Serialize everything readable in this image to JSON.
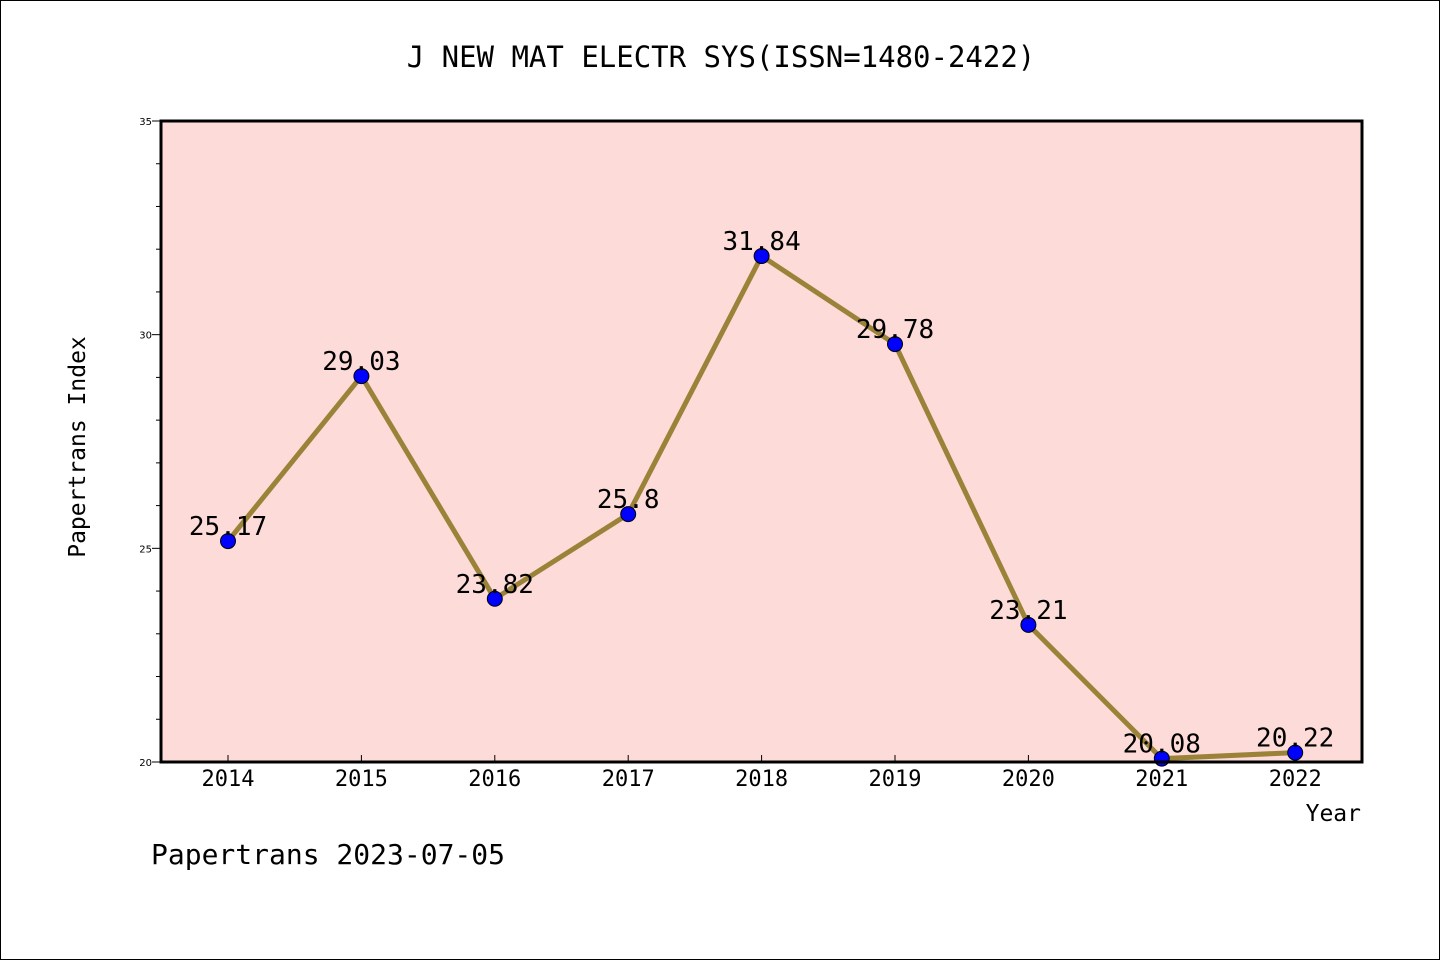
{
  "chart_data": {
    "type": "line",
    "title": "J NEW MAT ELECTR SYS(ISSN=1480-2422)",
    "xlabel": "Year",
    "ylabel": "Papertrans Index",
    "categories": [
      "2014",
      "2015",
      "2016",
      "2017",
      "2018",
      "2019",
      "2020",
      "2021",
      "2022"
    ],
    "series": [
      {
        "values": [
          25.17,
          29.03,
          23.82,
          25.8,
          31.84,
          29.78,
          23.21,
          20.08,
          20.22
        ],
        "labels": [
          "25.17",
          "29.03",
          "23.82",
          "25.8",
          "31.84",
          "29.78",
          "23.21",
          "20.08",
          "20.22"
        ]
      }
    ],
    "ylim": [
      20,
      35
    ],
    "y_ticks": [
      "20",
      "25",
      "30",
      "35"
    ],
    "grid": false,
    "colors": {
      "plot_background": "#fddbd8",
      "line": "#9a8338",
      "marker": "#0000ff",
      "marker_edge": "#000000"
    }
  },
  "footer": "Papertrans 2023-07-05"
}
